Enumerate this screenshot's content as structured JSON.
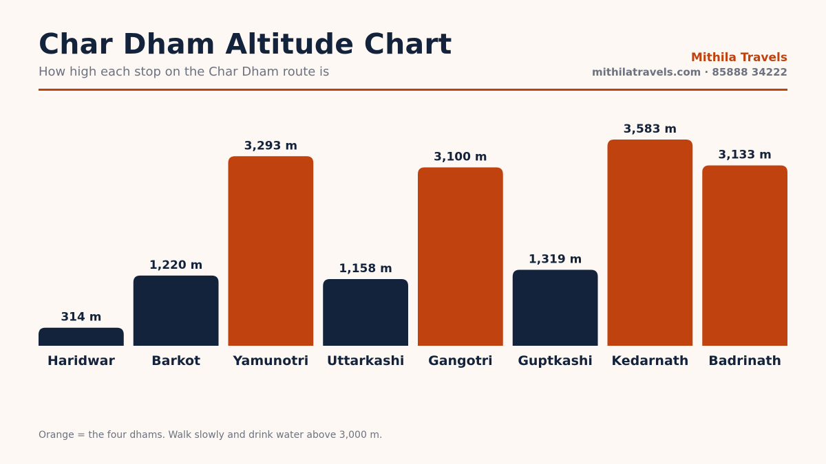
{
  "header": {
    "title": "Char Dham Altitude Chart",
    "subtitle": "How high each stop on the Char Dham route is",
    "brand": "Mithila Travels",
    "contact": "mithilatravels.com · 85888 34222"
  },
  "footer": {
    "note": "Orange = the four dhams. Walk slowly and drink water above 3,000 m."
  },
  "colors": {
    "accent": "#c0420f",
    "navy": "#13233b",
    "muted": "#6d7280",
    "background": "#fdf8f4"
  },
  "chart_data": {
    "type": "bar",
    "categories": [
      "Haridwar",
      "Barkot",
      "Yamunotri",
      "Uttarkashi",
      "Gangotri",
      "Guptkashi",
      "Kedarnath",
      "Badrinath"
    ],
    "values": [
      314,
      1220,
      3293,
      1158,
      3100,
      1319,
      3583,
      3133
    ],
    "value_labels": [
      "314 m",
      "1,220 m",
      "3,293 m",
      "1,158 m",
      "3,100 m",
      "1,319 m",
      "3,583 m",
      "3,133 m"
    ],
    "highlight": [
      false,
      false,
      true,
      false,
      true,
      false,
      true,
      true
    ],
    "unit": "m",
    "ylim": [
      0,
      3583
    ],
    "grid": false,
    "legend": "none"
  }
}
